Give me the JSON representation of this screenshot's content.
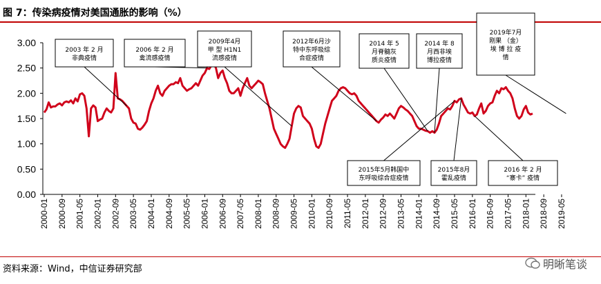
{
  "title": "图 7：传染病疫情对美国通胀的影响（%）",
  "source": "资料来源：Wind，中信证券研究部",
  "watermark": "明晰笔谈",
  "chart_data": {
    "type": "line",
    "ylim": [
      0,
      3
    ],
    "yticks": [
      "3.00",
      "2.50",
      "2.00",
      "1.50",
      "1.00",
      "0.50",
      "0.00"
    ],
    "xticks": [
      "2000-01",
      "2000-09",
      "2001-05",
      "2002-01",
      "2002-09",
      "2003-05",
      "2004-01",
      "2004-09",
      "2005-05",
      "2006-01",
      "2006-09",
      "2007-05",
      "2008-01",
      "2008-09",
      "2009-05",
      "2010-01",
      "2010-09",
      "2011-05",
      "2012-01",
      "2012-09",
      "2013-05",
      "2014-01",
      "2014-09",
      "2015-05",
      "2016-01",
      "2016-09",
      "2017-05",
      "2018-01",
      "2018-09",
      "2019-05"
    ],
    "line_color": "#d0021b",
    "series": [
      {
        "start": "2000-01",
        "values": [
          1.62,
          1.68,
          1.82,
          1.72,
          1.74,
          1.74,
          1.78,
          1.8,
          1.76,
          1.82,
          1.84,
          1.82,
          1.86,
          1.8,
          1.9,
          1.84,
          1.98,
          2.0,
          1.95,
          1.7,
          1.15,
          1.7,
          1.76,
          1.72,
          1.45,
          1.48,
          1.5,
          1.62,
          1.7,
          1.65,
          1.62,
          1.7,
          2.4,
          1.9,
          1.88,
          1.85,
          1.8,
          1.75,
          1.7,
          1.5,
          1.42,
          1.4,
          1.3,
          1.28,
          1.32,
          1.38,
          1.45,
          1.65,
          1.8,
          1.9,
          2.05,
          2.15,
          2.0,
          1.95,
          2.05,
          2.1,
          2.15,
          2.18,
          2.18,
          2.22,
          2.2,
          2.3,
          2.15,
          2.1,
          2.05,
          2.08,
          2.1,
          2.15,
          2.2,
          2.15,
          2.25,
          2.35,
          2.4,
          2.5,
          2.48,
          2.55,
          2.58,
          2.5,
          2.3,
          2.4,
          2.45,
          2.3,
          2.2,
          2.05,
          2.0,
          2.0,
          2.05,
          2.1,
          1.95,
          2.1,
          2.2,
          2.3,
          2.15,
          2.1,
          2.15,
          2.2,
          2.25,
          2.22,
          2.18,
          2.0,
          1.85,
          1.7,
          1.5,
          1.3,
          1.2,
          1.1,
          1.0,
          0.95,
          0.92,
          1.0,
          1.1,
          1.35,
          1.6,
          1.7,
          1.75,
          1.72,
          1.55,
          1.5,
          1.45,
          1.4,
          1.3,
          1.1,
          0.95,
          0.92,
          1.0,
          1.2,
          1.4,
          1.55,
          1.7,
          1.85,
          1.9,
          1.95,
          2.05,
          2.1,
          2.12,
          2.1,
          2.05,
          2.0,
          1.98,
          2.0,
          1.95,
          1.85,
          1.8,
          1.75,
          1.7,
          1.65,
          1.6,
          1.55,
          1.5,
          1.45,
          1.42,
          1.48,
          1.52,
          1.58,
          1.55,
          1.6,
          1.55,
          1.5,
          1.6,
          1.7,
          1.75,
          1.72,
          1.68,
          1.65,
          1.6,
          1.55,
          1.45,
          1.35,
          1.3,
          1.3,
          1.28,
          1.26,
          1.25,
          1.22,
          1.25,
          1.22,
          1.28,
          1.4,
          1.55,
          1.6,
          1.65,
          1.7,
          1.68,
          1.75,
          1.85,
          1.82,
          1.88,
          1.9,
          1.78,
          1.7,
          1.62,
          1.6,
          1.62,
          1.55,
          1.58,
          1.7,
          1.8,
          1.6,
          1.65,
          1.75,
          1.8,
          1.82,
          1.95,
          2.05,
          2.0,
          2.1,
          2.08,
          2.12,
          2.05,
          2.0,
          1.9,
          1.7,
          1.55,
          1.5,
          1.55,
          1.68,
          1.75,
          1.62,
          1.58,
          1.6
        ]
      }
    ],
    "annotations": [
      {
        "lines": [
          "2003 年 2 月",
          "非典疫情"
        ],
        "target": "2003-02"
      },
      {
        "lines": [
          "2006 年 2 月",
          "禽流感疫情"
        ],
        "target": "2006-02"
      },
      {
        "lines": [
          "2009年4月",
          "甲 型 H1N1",
          "流感疫情"
        ],
        "target": "2009-04"
      },
      {
        "lines": [
          "2012年6月沙",
          "特中东呼吸综",
          "合症疫情"
        ],
        "target": "2012-06"
      },
      {
        "lines": [
          "2014 年 5",
          "月脊髓灰",
          "质炎疫情"
        ],
        "target": "2014-05"
      },
      {
        "lines": [
          "2014 年 8",
          "月西非埃",
          "博拉疫情"
        ],
        "target": "2014-08"
      },
      {
        "lines": [
          "2019年7月",
          "刚果 （金）",
          "埃 博 拉 疫",
          "情"
        ],
        "target": "2019-07"
      },
      {
        "lines": [
          "2015年5月韩国中",
          "东呼吸综合症疫情"
        ],
        "target": "2015-05"
      },
      {
        "lines": [
          "2015年8月",
          "霍乱疫情"
        ],
        "target": "2015-08"
      },
      {
        "lines": [
          "2016  年  2  月",
          "“寨卡”  疫情"
        ],
        "target": "2016-02"
      }
    ]
  }
}
